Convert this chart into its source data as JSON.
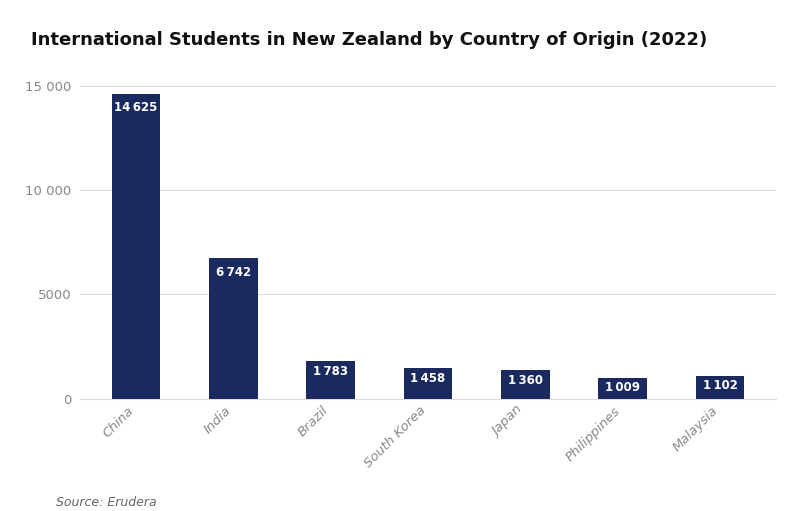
{
  "title": "International Students in New Zealand by Country of Origin (2022)",
  "categories": [
    "China",
    "India",
    "Brazil",
    "South Korea",
    "Japan",
    "Philippines",
    "Malaysia"
  ],
  "values": [
    14625,
    6742,
    1783,
    1458,
    1360,
    1009,
    1102
  ],
  "bar_color": "#1b2a5e",
  "label_color": "#ffffff",
  "label_fontsize": 8.5,
  "title_fontsize": 13,
  "title_fontweight": "bold",
  "ylim": [
    0,
    16200
  ],
  "yticks": [
    0,
    5000,
    10000,
    15000
  ],
  "ytick_labels": [
    "0",
    "5000",
    "10 000",
    "15 000"
  ],
  "background_color": "#ffffff",
  "grid_color": "#dddddd",
  "source_text": "Source: Erudera",
  "source_fontsize": 9,
  "source_color": "#666666",
  "bar_width": 0.5,
  "tick_label_color": "#888888",
  "tick_label_fontsize": 9.5
}
